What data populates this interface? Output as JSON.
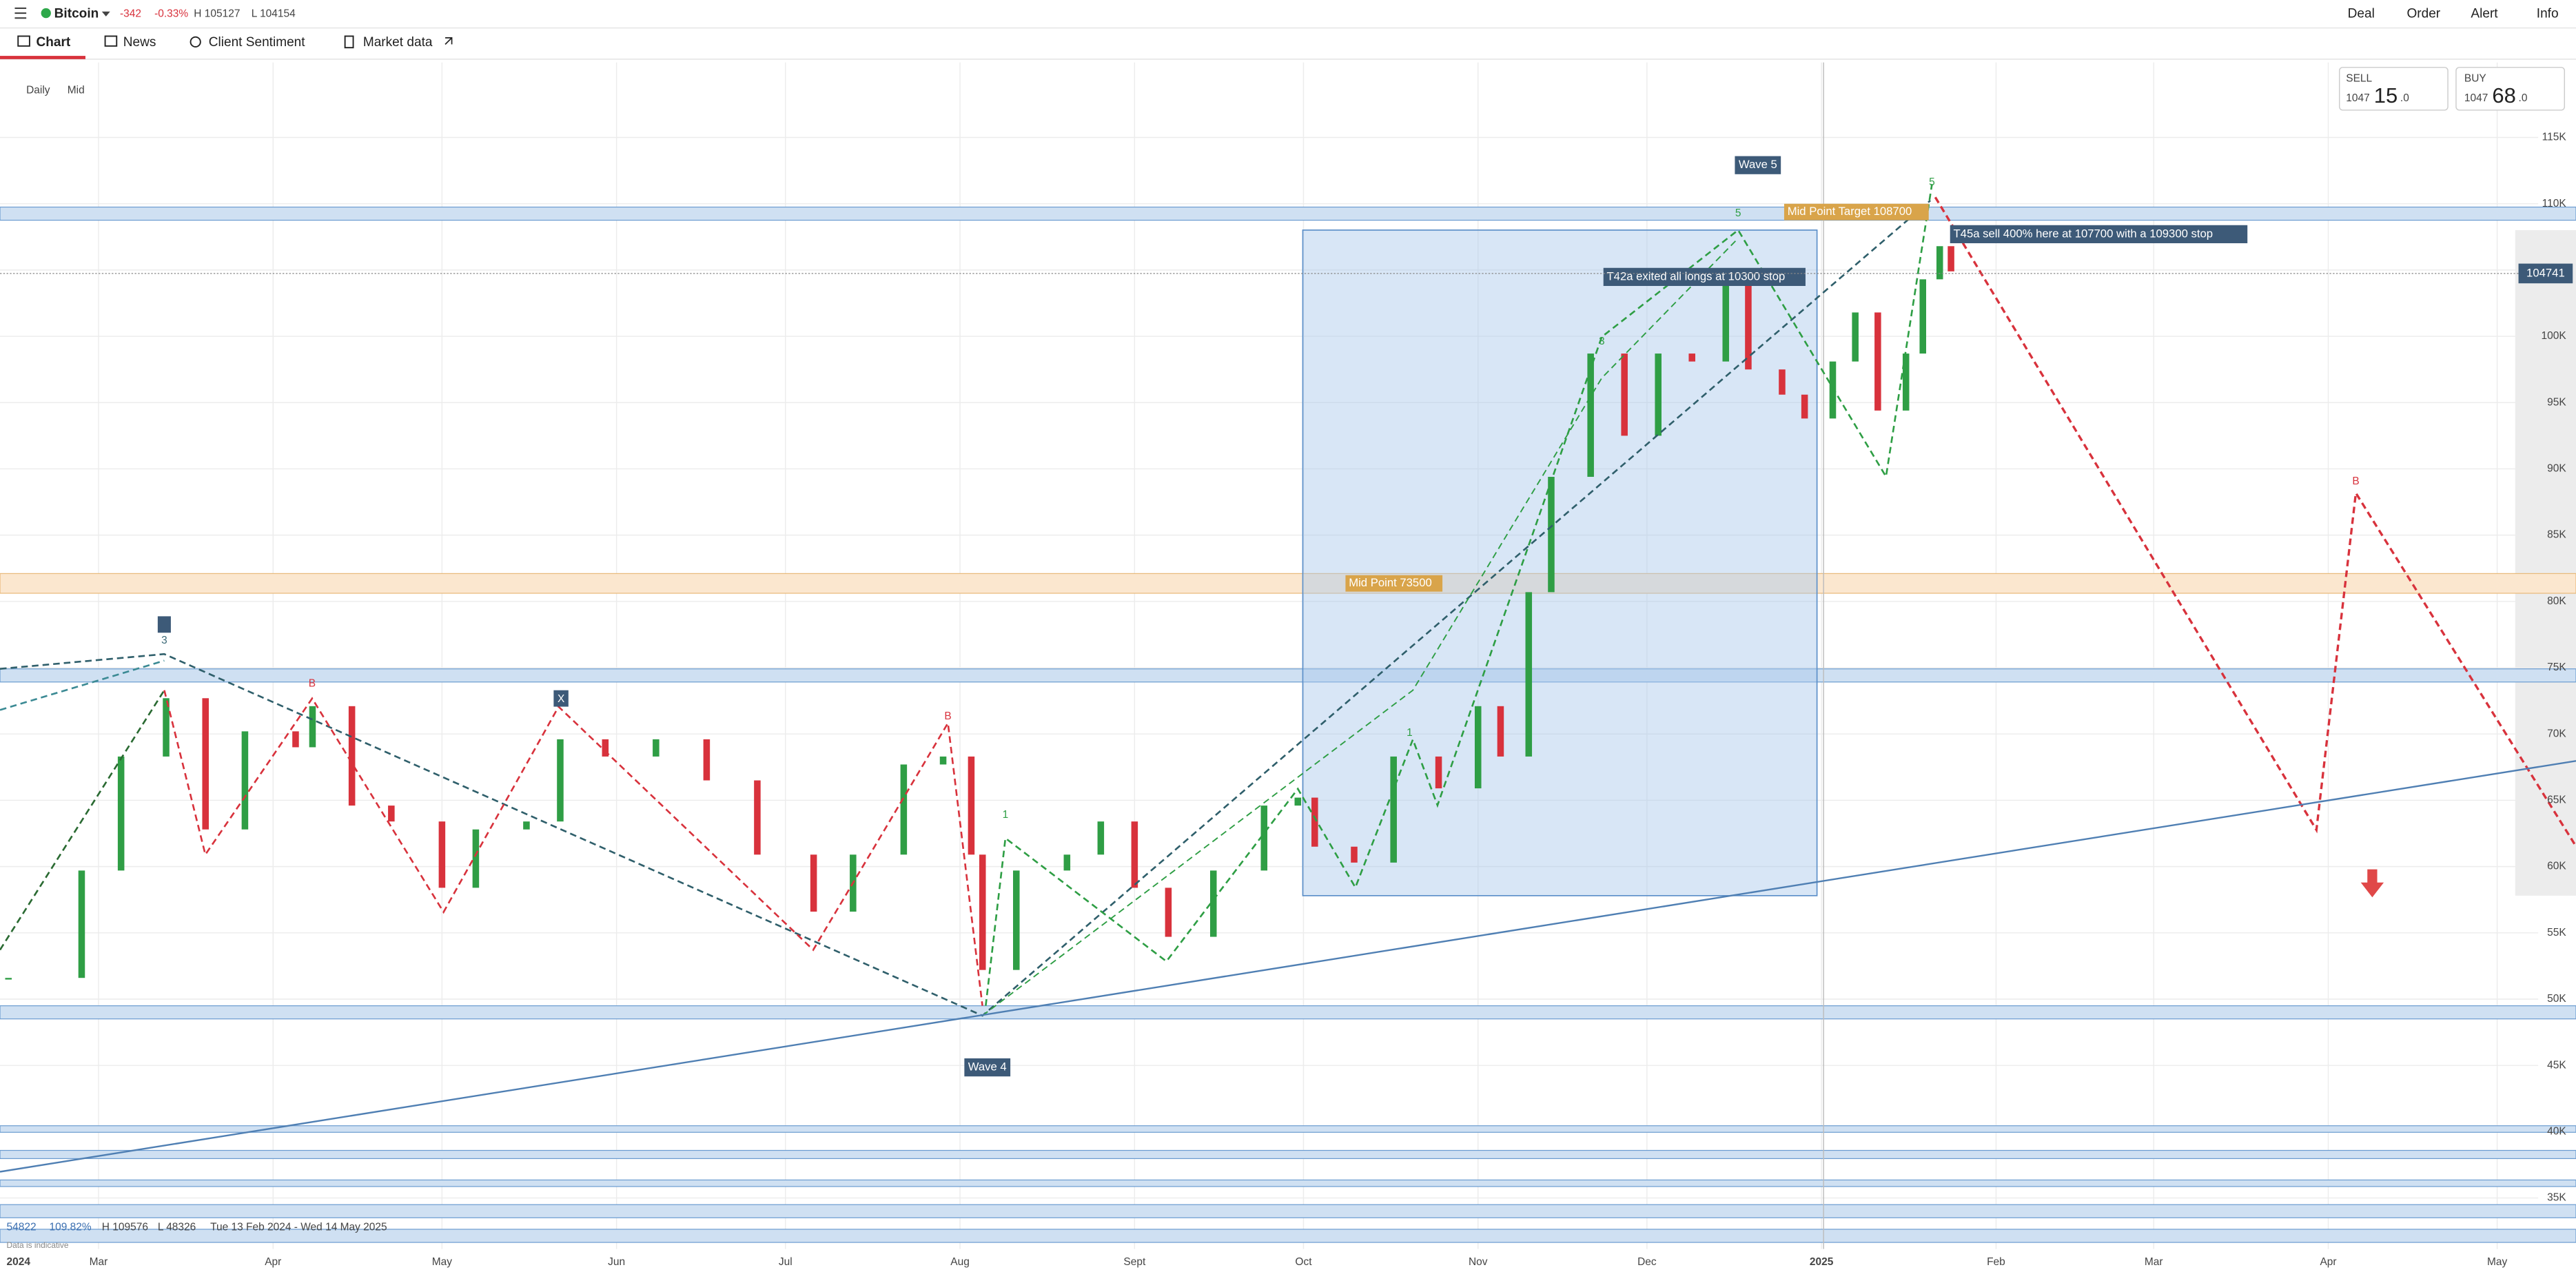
{
  "header": {
    "instrument": "Bitcoin",
    "change": "-342",
    "change_pct": "-0.33%",
    "high": "H 105127",
    "low": "L 104154",
    "actions": [
      "Deal",
      "Order",
      "Alert",
      "Info"
    ]
  },
  "tabs": [
    "Chart",
    "News",
    "Client Sentiment",
    "Market data"
  ],
  "chart_options": [
    "Daily",
    "Mid"
  ],
  "quote": {
    "sell_label": "SELL",
    "sell_big": "1047",
    "sell_pips": "15",
    "sell_frac": ".0",
    "buy_label": "BUY",
    "buy_big": "1047",
    "buy_pips": "68",
    "buy_frac": ".0"
  },
  "annotations": {
    "wave5": "Wave 5",
    "wave4": "Wave 4",
    "target": "Mid Point Target 108700",
    "exit": "T42a exited all longs at 10300 stop",
    "sell": "T45a sell 400% here at 107700 with a 109300 stop",
    "midpoint": "Mid Point 73500"
  },
  "wave_labels": [
    "3",
    "B",
    "X",
    "B",
    "1",
    "1",
    "3",
    "5",
    "5",
    "B"
  ],
  "footer": {
    "open": "54822",
    "pct": "109.82%",
    "high": "H 109576",
    "low": "L 48326",
    "range": "Tue 13 Feb 2024 - Wed 14 May 2025",
    "note": "Data is indicative"
  },
  "chart_data": {
    "type": "candlestick",
    "year_label": "2024",
    "days": [
      44,
      57,
      64,
      72,
      79,
      86,
      95,
      98,
      105,
      112,
      121,
      127,
      136,
      142,
      150,
      159,
      168,
      177,
      187,
      194,
      203,
      210,
      215,
      217,
      223,
      232,
      238,
      244,
      250,
      258,
      267,
      273,
      276,
      283,
      290,
      298,
      305,
      309,
      314,
      318,
      325,
      331,
      337,
      343,
      349,
      353,
      359,
      363,
      368,
      372,
      376,
      381,
      384,
      387,
      389
    ],
    "closes": [
      51600,
      59700,
      68300,
      72700,
      62800,
      70200,
      69000,
      72100,
      64600,
      63400,
      58400,
      62800,
      63400,
      69600,
      68300,
      69600,
      66500,
      60900,
      56600,
      60900,
      67700,
      68300,
      60900,
      52200,
      59700,
      60900,
      63400,
      58400,
      54700,
      59700,
      64600,
      65200,
      61500,
      60300,
      68300,
      65900,
      72100,
      68300,
      80700,
      89400,
      98700,
      92500,
      98700,
      98100,
      104900,
      97500,
      95600,
      93800,
      98100,
      101800,
      94400,
      98700,
      104300,
      106800,
      104900
    ],
    "up_color": "#2f9e45",
    "down_color": "#d8323c",
    "xlim": [
      42.5,
      500
    ],
    "ylim": [
      31150,
      120660
    ],
    "xticks": [
      {
        "value": 60,
        "label": "Mar"
      },
      {
        "value": 91,
        "label": "Apr"
      },
      {
        "value": 121,
        "label": "May"
      },
      {
        "value": 152,
        "label": "Jun"
      },
      {
        "value": 182,
        "label": "Jul"
      },
      {
        "value": 213,
        "label": "Aug"
      },
      {
        "value": 244,
        "label": "Sept"
      },
      {
        "value": 274,
        "label": "Oct"
      },
      {
        "value": 305,
        "label": "Nov"
      },
      {
        "value": 335,
        "label": "Dec"
      },
      {
        "value": 366,
        "label": "2025"
      },
      {
        "value": 397,
        "label": "Feb"
      },
      {
        "value": 425,
        "label": "Mar"
      },
      {
        "value": 456,
        "label": "Apr"
      },
      {
        "value": 486,
        "label": "May"
      }
    ],
    "yticks": [
      {
        "value": 35000,
        "label": "35K"
      },
      {
        "value": 40000,
        "label": "40K"
      },
      {
        "value": 45000,
        "label": "45K"
      },
      {
        "value": 50000,
        "label": "50K"
      },
      {
        "value": 55000,
        "label": "55K"
      },
      {
        "value": 60000,
        "label": "60K"
      },
      {
        "value": 65000,
        "label": "65K"
      },
      {
        "value": 70000,
        "label": "70K"
      },
      {
        "value": 75000,
        "label": "75K"
      },
      {
        "value": 80000,
        "label": "80K"
      },
      {
        "value": 85000,
        "label": "85K"
      },
      {
        "value": 90000,
        "label": "90K"
      },
      {
        "value": 95000,
        "label": "95K"
      },
      {
        "value": 100000,
        "label": "100K"
      },
      {
        "value": 105000,
        "label": "105K"
      },
      {
        "value": 110000,
        "label": "110K"
      },
      {
        "value": 115000,
        "label": "115K"
      }
    ],
    "last_price": 104741,
    "grid": true
  }
}
